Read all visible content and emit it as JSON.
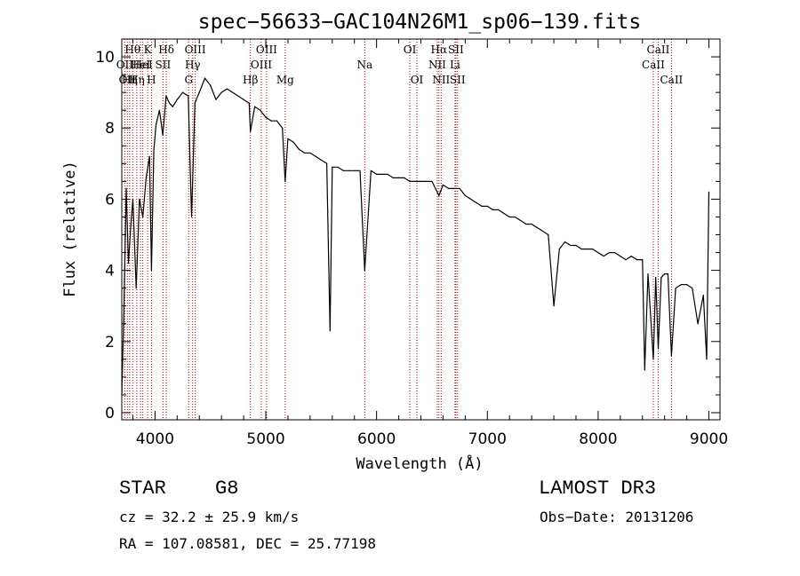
{
  "chart_data": {
    "type": "line",
    "title": "spec−56633−GAC104N26M1_sp06−139.fits",
    "xlabel": "Wavelength (Å)",
    "ylabel": "Flux (relative)",
    "xlim": [
      3700,
      9100
    ],
    "ylim": [
      -0.2,
      10.5
    ],
    "xticks": [
      4000,
      5000,
      6000,
      7000,
      8000,
      9000
    ],
    "yticks": [
      0,
      2,
      4,
      6,
      8,
      10
    ],
    "series": [
      {
        "x": [
          3700,
          3720,
          3740,
          3760,
          3780,
          3800,
          3830,
          3860,
          3890,
          3920,
          3950,
          3968,
          3990,
          4010,
          4040,
          4070,
          4100,
          4130,
          4160,
          4200,
          4250,
          4300,
          4330,
          4360,
          4400,
          4450,
          4500,
          4550,
          4600,
          4650,
          4700,
          4750,
          4800,
          4850,
          4861,
          4900,
          4950,
          5000,
          5050,
          5100,
          5150,
          5175,
          5200,
          5250,
          5300,
          5350,
          5400,
          5450,
          5500,
          5550,
          5580,
          5600,
          5650,
          5700,
          5750,
          5800,
          5850,
          5893,
          5950,
          6000,
          6050,
          6100,
          6150,
          6200,
          6250,
          6300,
          6350,
          6400,
          6450,
          6500,
          6563,
          6600,
          6650,
          6700,
          6750,
          6800,
          6850,
          6900,
          6950,
          7000,
          7050,
          7100,
          7150,
          7200,
          7250,
          7300,
          7350,
          7400,
          7450,
          7500,
          7550,
          7600,
          7650,
          7700,
          7750,
          7800,
          7850,
          7900,
          7950,
          8000,
          8050,
          8100,
          8150,
          8200,
          8250,
          8300,
          8350,
          8400,
          8420,
          8450,
          8498,
          8520,
          8542,
          8570,
          8600,
          8630,
          8662,
          8700,
          8750,
          8800,
          8850,
          8900,
          8950,
          8980,
          9000
        ],
        "y": [
          0.5,
          3.0,
          6.3,
          4.2,
          5.2,
          6.0,
          3.5,
          6.0,
          5.5,
          6.6,
          7.2,
          4.0,
          7.4,
          8.1,
          8.5,
          7.8,
          8.9,
          8.7,
          8.6,
          8.8,
          9.0,
          8.9,
          5.5,
          8.7,
          9.0,
          9.4,
          9.2,
          8.8,
          9.0,
          9.1,
          9.0,
          8.9,
          8.8,
          8.7,
          7.9,
          8.6,
          8.5,
          8.3,
          8.2,
          8.2,
          8.0,
          6.5,
          7.7,
          7.6,
          7.4,
          7.3,
          7.3,
          7.2,
          7.1,
          7.0,
          2.3,
          6.9,
          6.9,
          6.8,
          6.8,
          6.8,
          6.8,
          4.0,
          6.8,
          6.7,
          6.7,
          6.7,
          6.6,
          6.6,
          6.6,
          6.5,
          6.5,
          6.5,
          6.5,
          6.5,
          6.1,
          6.4,
          6.3,
          6.3,
          6.3,
          6.1,
          6.0,
          5.9,
          5.8,
          5.8,
          5.7,
          5.7,
          5.6,
          5.5,
          5.5,
          5.4,
          5.3,
          5.3,
          5.2,
          5.1,
          5.0,
          3.0,
          4.6,
          4.8,
          4.7,
          4.7,
          4.6,
          4.6,
          4.6,
          4.5,
          4.4,
          4.5,
          4.5,
          4.4,
          4.3,
          4.4,
          4.3,
          4.3,
          1.2,
          3.9,
          1.5,
          3.8,
          1.8,
          3.8,
          3.9,
          3.9,
          1.6,
          3.5,
          3.6,
          3.6,
          3.5,
          2.5,
          3.3,
          1.5,
          6.2
        ]
      }
    ],
    "lines": [
      {
        "w": 3727,
        "row": 1,
        "text": "OII"
      },
      {
        "w": 3750,
        "row": 2,
        "text": "OII"
      },
      {
        "w": 3771,
        "row": 2,
        "text": "Hη"
      },
      {
        "w": 3798,
        "row": 0,
        "text": "Hθ"
      },
      {
        "w": 3835,
        "row": 2,
        "text": "Hη"
      },
      {
        "w": 3869,
        "row": 1,
        "text": "HeI"
      },
      {
        "w": 3889,
        "row": 1,
        "text": "HeI"
      },
      {
        "w": 3934,
        "row": 0,
        "text": "K"
      },
      {
        "w": 3968,
        "row": 2,
        "text": "H"
      },
      {
        "w": 4072,
        "row": 1,
        "text": "SII"
      },
      {
        "w": 4102,
        "row": 0,
        "text": "Hδ"
      },
      {
        "w": 4304,
        "row": 2,
        "text": "G"
      },
      {
        "w": 4340,
        "row": 1,
        "text": "Hγ"
      },
      {
        "w": 4363,
        "row": 0,
        "text": "OIII"
      },
      {
        "w": 4861,
        "row": 2,
        "text": "Hβ"
      },
      {
        "w": 4959,
        "row": 1,
        "text": "OIII"
      },
      {
        "w": 5007,
        "row": 0,
        "text": "OIII"
      },
      {
        "w": 5175,
        "row": 2,
        "text": "Mg"
      },
      {
        "w": 5893,
        "row": 1,
        "text": "Na"
      },
      {
        "w": 6300,
        "row": 0,
        "text": "OI"
      },
      {
        "w": 6364,
        "row": 2,
        "text": "OI"
      },
      {
        "w": 6548,
        "row": 1,
        "text": "NII"
      },
      {
        "w": 6563,
        "row": 0,
        "text": "Hα"
      },
      {
        "w": 6583,
        "row": 2,
        "text": "NII"
      },
      {
        "w": 6708,
        "row": 1,
        "text": "Li"
      },
      {
        "w": 6716,
        "row": 0,
        "text": "SII"
      },
      {
        "w": 6731,
        "row": 2,
        "text": "SII"
      },
      {
        "w": 8498,
        "row": 1,
        "text": "CaII"
      },
      {
        "w": 8542,
        "row": 0,
        "text": "CaII"
      },
      {
        "w": 8662,
        "row": 2,
        "text": "CaII"
      }
    ]
  },
  "info": {
    "class": "STAR",
    "subclass": "G8",
    "survey": "LAMOST DR3",
    "cz": "cz = 32.2 ± 25.9 km/s",
    "obs_date": "Obs−Date: 20131206",
    "radec": "RA = 107.08581, DEC =  25.77198"
  }
}
